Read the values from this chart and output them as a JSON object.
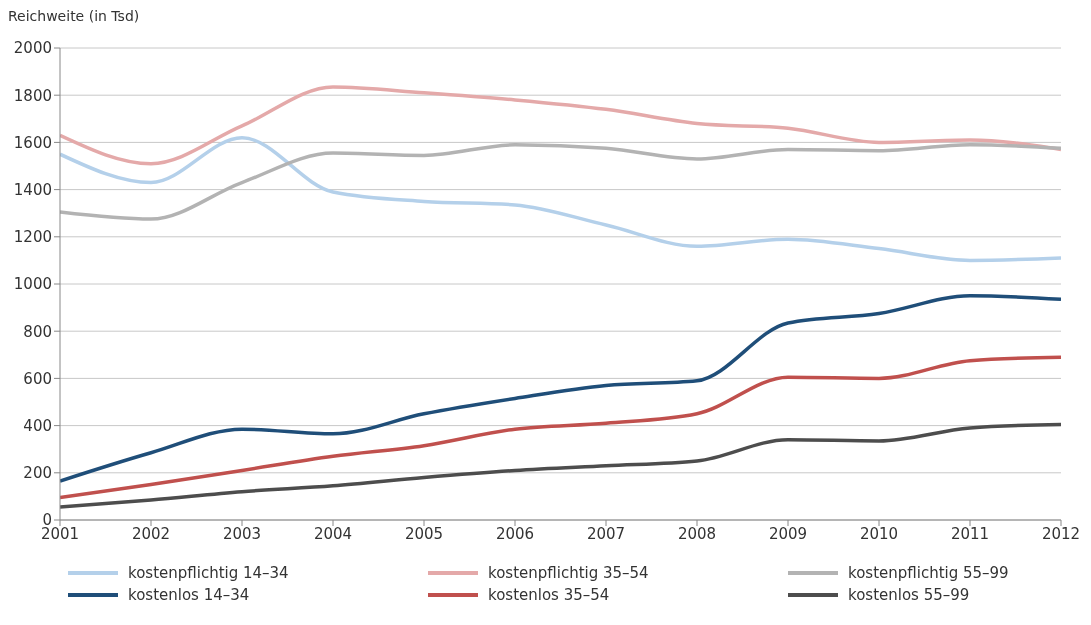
{
  "chart_data": {
    "type": "line",
    "ylabel": "Reichweite (in Tsd)",
    "x": [
      2001,
      2002,
      2003,
      2004,
      2005,
      2006,
      2007,
      2008,
      2009,
      2010,
      2011,
      2012
    ],
    "series": [
      {
        "name": "kostenpflichtig 14–34",
        "color": "#b4d0ea",
        "values": [
          1550,
          1430,
          1620,
          1390,
          1350,
          1335,
          1250,
          1160,
          1190,
          1150,
          1100,
          1110
        ]
      },
      {
        "name": "kostenpflichtig 35–54",
        "color": "#e4a9a9",
        "values": [
          1630,
          1510,
          1670,
          1835,
          1810,
          1780,
          1740,
          1680,
          1660,
          1600,
          1610,
          1570
        ]
      },
      {
        "name": "kostenpflichtig 55–99",
        "color": "#b3b3b3",
        "values": [
          1305,
          1275,
          1430,
          1555,
          1545,
          1590,
          1575,
          1530,
          1570,
          1565,
          1590,
          1575
        ]
      },
      {
        "name": "kostenlos 14–34",
        "color": "#1f4e79",
        "values": [
          165,
          285,
          385,
          365,
          450,
          515,
          570,
          590,
          835,
          875,
          950,
          935
        ]
      },
      {
        "name": "kostenlos 35–54",
        "color": "#c0504d",
        "values": [
          95,
          150,
          210,
          270,
          315,
          385,
          410,
          450,
          605,
          600,
          675,
          690
        ]
      },
      {
        "name": "kostenlos 55–99",
        "color": "#4d4d4d",
        "values": [
          55,
          85,
          120,
          145,
          180,
          210,
          230,
          250,
          340,
          335,
          390,
          405
        ]
      }
    ],
    "xlim": [
      2001,
      2012
    ],
    "xticks": [
      2001,
      2002,
      2003,
      2004,
      2005,
      2006,
      2007,
      2008,
      2009,
      2010,
      2011,
      2012
    ],
    "ylim": [
      0,
      2000
    ],
    "yticks": [
      0,
      200,
      400,
      600,
      800,
      1000,
      1200,
      1400,
      1600,
      1800,
      2000
    ],
    "grid": "y",
    "legend": "bottom",
    "marker": "none",
    "line_style": "solid"
  }
}
